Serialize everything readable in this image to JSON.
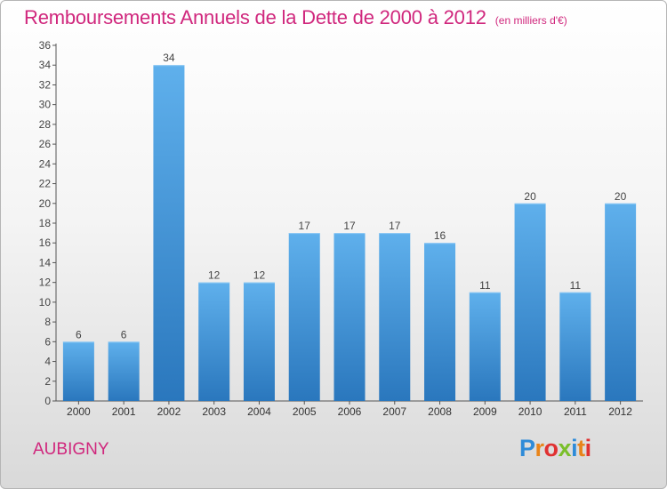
{
  "header": {
    "title": "Remboursements Annuels de la Dette de 2000 à 2012",
    "unit": "(en milliers d'€)"
  },
  "location": {
    "name": "AUBIGNY"
  },
  "logo": {
    "letters": [
      {
        "char": "P",
        "color": "#2e8bd8"
      },
      {
        "char": "r",
        "color": "#e8841a"
      },
      {
        "char": "o",
        "color": "#e03131"
      },
      {
        "char": "x",
        "color": "#7abf2a"
      },
      {
        "char": "i",
        "color": "#2e8bd8"
      },
      {
        "char": "t",
        "color": "#e8841a"
      },
      {
        "char": "i",
        "color": "#e03131"
      }
    ]
  },
  "chart_data": {
    "type": "bar",
    "title": "Remboursements Annuels de la Dette de 2000 à 2012",
    "unit_label": "(en milliers d'€)",
    "categories": [
      "2000",
      "2001",
      "2002",
      "2003",
      "2004",
      "2005",
      "2006",
      "2007",
      "2008",
      "2009",
      "2010",
      "2011",
      "2012"
    ],
    "values": [
      6,
      6,
      34,
      12,
      12,
      17,
      17,
      17,
      16,
      11,
      20,
      11,
      20
    ],
    "ylim": [
      0,
      36
    ],
    "ytick_step": 2,
    "grid": false,
    "bar_color": "#3f98dd"
  }
}
